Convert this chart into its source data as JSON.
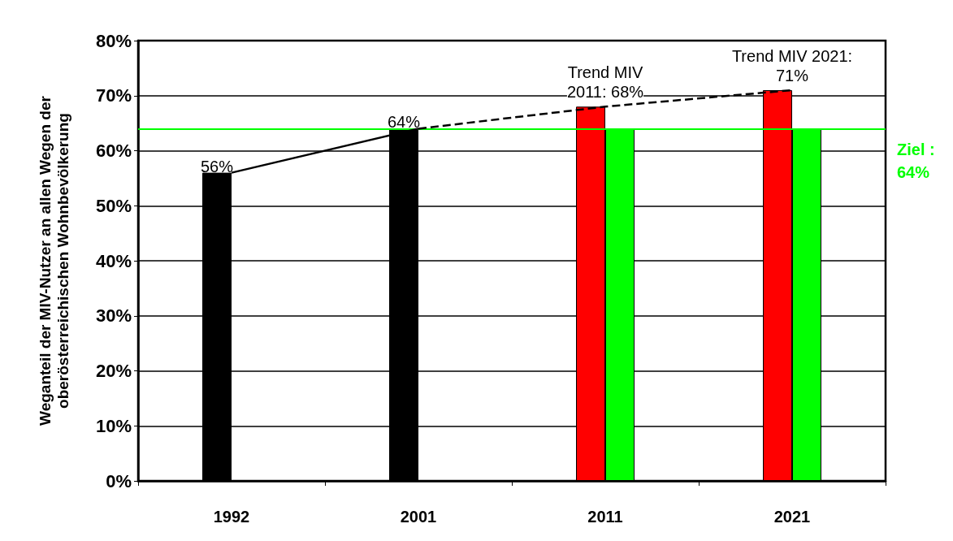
{
  "chart_data": {
    "type": "bar",
    "ylabel": "Weganteil der MIV-Nutzer an allen Wegen der\noberösterreichischen Wohnbevölkerung",
    "categories": [
      "1992",
      "2001",
      "2011",
      "2021"
    ],
    "series": [
      {
        "colors": [
          "#000000",
          "#000000",
          "#ff0000",
          "#ff0000"
        ],
        "values": [
          56,
          64,
          68,
          71
        ],
        "value_labels": [
          "56%",
          "64%",
          null,
          null
        ]
      },
      {
        "color": "#00ff00",
        "values": [
          null,
          null,
          64,
          64
        ]
      },
      {
        "type": "line",
        "color": "#000000",
        "values": [
          56,
          64,
          null,
          null
        ],
        "line_style": "solid"
      },
      {
        "type": "line",
        "color": "#000000",
        "values": [
          null,
          64,
          68,
          71
        ],
        "line_style": "dashed"
      }
    ],
    "ylim": [
      0,
      80
    ],
    "yticks": [
      {
        "value": 0,
        "label": "0%"
      },
      {
        "value": 10,
        "label": "10%"
      },
      {
        "value": 20,
        "label": "20%"
      },
      {
        "value": 30,
        "label": "30%"
      },
      {
        "value": 40,
        "label": "40%"
      },
      {
        "value": 50,
        "label": "50%"
      },
      {
        "value": 60,
        "label": "60%"
      },
      {
        "value": 70,
        "label": "70%"
      },
      {
        "value": 80,
        "label": "80%"
      }
    ],
    "ref_lines": [
      {
        "axis": "y",
        "value": 64,
        "label": "Ziel :\n64%",
        "color": "#00ff00"
      }
    ],
    "annotations": [
      {
        "text": "Trend MIV\n2011: 68%",
        "x": "2011",
        "y": 68
      },
      {
        "text": "Trend MIV 2021:\n71%",
        "x": "2021",
        "y": 71
      }
    ],
    "grid": "y",
    "marker": "none"
  }
}
